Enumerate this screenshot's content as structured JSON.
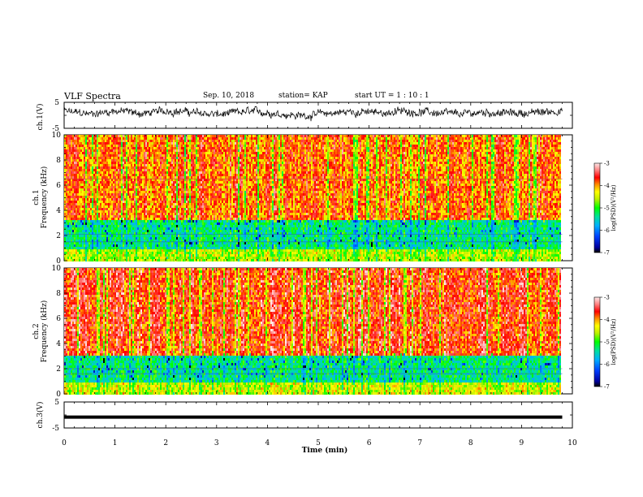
{
  "header": {
    "title": "VLF Spectra",
    "date": "Sep. 10, 2018",
    "station": "station= KAP",
    "start": "start  UT =   1 : 10 : 1"
  },
  "chart_data": [
    {
      "type": "line",
      "id": "ch1-waveform",
      "ylabel": "ch.1(V)",
      "ylim": [
        -5,
        5
      ],
      "y_ticks": [
        "5",
        "-5"
      ],
      "xlim": [
        0,
        10
      ],
      "series": [
        {
          "x_range": [
            0,
            9.8
          ],
          "approx_level_profile": [
            1.5,
            0.5,
            1.8,
            0.6,
            1.9,
            1.0,
            0.2,
            1.4,
            1.0,
            -0.2,
            0.7,
            1.4,
            0.9,
            1.6,
            1.1,
            0.3,
            1.2,
            0.8,
            1.0,
            1.9
          ]
        }
      ]
    },
    {
      "type": "heatmap",
      "id": "ch1-spectrogram",
      "ylabel": "Frequency (kHz)",
      "channel_label": "ch.1",
      "ylim": [
        0,
        10
      ],
      "y_ticks": [
        "0",
        "2",
        "4",
        "6",
        "8",
        "10"
      ],
      "xlim": [
        0,
        10
      ],
      "data_x_range": [
        0,
        9.8
      ],
      "colorbar": {
        "label": "log(PSD)(V²/Hz)",
        "range": [
          -7,
          -3
        ],
        "ticks": [
          "-3",
          "-4",
          "-5",
          "-6",
          "-7"
        ]
      },
      "bands": [
        {
          "from_khz": 3.2,
          "to_khz": 10,
          "level": -3.9
        },
        {
          "from_khz": 1.0,
          "to_khz": 3.2,
          "level": -5.3
        },
        {
          "from_khz": 0,
          "to_khz": 1.0,
          "level": -4.6
        }
      ],
      "lines_khz": [
        6.5,
        2.1,
        1.5
      ]
    },
    {
      "type": "heatmap",
      "id": "ch2-spectrogram",
      "ylabel": "Frequency (kHz)",
      "channel_label": "ch.2",
      "ylim": [
        0,
        10
      ],
      "y_ticks": [
        "0",
        "2",
        "4",
        "6",
        "8",
        "10"
      ],
      "xlim": [
        0,
        10
      ],
      "data_x_range": [
        0,
        9.8
      ],
      "colorbar": {
        "label": "log(PSD)(V²/Hz)",
        "range": [
          -7,
          -3
        ],
        "ticks": [
          "-3",
          "-4",
          "-5",
          "-6",
          "-7"
        ]
      },
      "bands": [
        {
          "from_khz": 3.0,
          "to_khz": 10,
          "level": -3.7
        },
        {
          "from_khz": 0.9,
          "to_khz": 3.0,
          "level": -5.3
        },
        {
          "from_khz": 0,
          "to_khz": 0.9,
          "level": -4.5
        }
      ],
      "lines_khz": [
        2.0,
        1.6
      ]
    },
    {
      "type": "line",
      "id": "ch3-waveform",
      "ylabel": "ch.3(V)",
      "ylim": [
        -5,
        5
      ],
      "y_ticks": [
        "5",
        "-5"
      ],
      "xlabel": "Time  (min)",
      "xlim": [
        0,
        10
      ],
      "x_ticks": [
        "0",
        "1",
        "2",
        "3",
        "4",
        "5",
        "6",
        "7",
        "8",
        "9",
        "10"
      ],
      "series": [
        {
          "x": [
            0,
            9.8
          ],
          "y": [
            -0.8,
            -0.8
          ]
        }
      ]
    }
  ]
}
